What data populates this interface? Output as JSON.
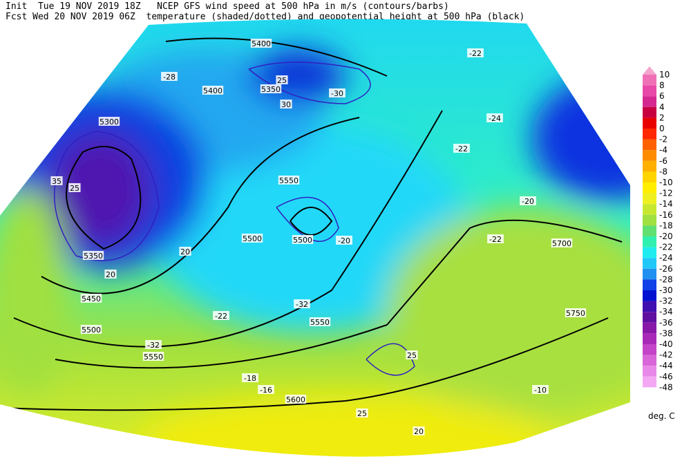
{
  "header": {
    "line1": "Init  Tue 19 NOV 2019 18Z   NCEP GFS wind speed at 500 hPa in m/s (contours/barbs)",
    "line2": "Fcst Wed 20 NOV 2019 06Z  temperature (shaded/dotted) and geopotential height at 500 hPa (black)"
  },
  "colorbar": {
    "unit": "deg. C",
    "levels": [
      {
        "label": "10",
        "color": "#f4a6cc"
      },
      {
        "label": "8",
        "color": "#f070b8"
      },
      {
        "label": "6",
        "color": "#e848a8"
      },
      {
        "label": "4",
        "color": "#d42890"
      },
      {
        "label": "2",
        "color": "#c80040"
      },
      {
        "label": "0",
        "color": "#e80000"
      },
      {
        "label": "-2",
        "color": "#ff2800"
      },
      {
        "label": "-4",
        "color": "#ff6000"
      },
      {
        "label": "-6",
        "color": "#ff8c00"
      },
      {
        "label": "-8",
        "color": "#ffb000"
      },
      {
        "label": "-10",
        "color": "#ffd400"
      },
      {
        "label": "-12",
        "color": "#ffee00"
      },
      {
        "label": "-14",
        "color": "#eef020"
      },
      {
        "label": "-16",
        "color": "#c8e830"
      },
      {
        "label": "-18",
        "color": "#a0e040"
      },
      {
        "label": "-20",
        "color": "#60e070"
      },
      {
        "label": "-22",
        "color": "#30f0b0"
      },
      {
        "label": "-24",
        "color": "#20ecf0"
      },
      {
        "label": "-26",
        "color": "#20c8f8"
      },
      {
        "label": "-28",
        "color": "#2090f0"
      },
      {
        "label": "-30",
        "color": "#1040e8"
      },
      {
        "label": "-32",
        "color": "#0010d0"
      },
      {
        "label": "-34",
        "color": "#4010b0"
      },
      {
        "label": "-36",
        "color": "#6010a0"
      },
      {
        "label": "-38",
        "color": "#8818a8"
      },
      {
        "label": "-40",
        "color": "#a828b8"
      },
      {
        "label": "-42",
        "color": "#c444c8"
      },
      {
        "label": "-44",
        "color": "#d866d8"
      },
      {
        "label": "-46",
        "color": "#e888e8"
      },
      {
        "label": "-48",
        "color": "#f4a8f4"
      }
    ]
  },
  "map_labels": [
    "5400",
    "5350",
    "5400",
    "5300",
    "5350",
    "5450",
    "5500",
    "5550",
    "5550",
    "5500",
    "5550",
    "5600",
    "5700",
    "5750",
    "5500",
    "-28",
    "-30",
    "-22",
    "-24",
    "-22",
    "-20",
    "-22",
    "-32",
    "-32",
    "-22",
    "-18",
    "-16",
    "-10",
    "-20",
    "20",
    "25",
    "30",
    "35",
    "25",
    "20",
    "25",
    "20",
    "25"
  ]
}
